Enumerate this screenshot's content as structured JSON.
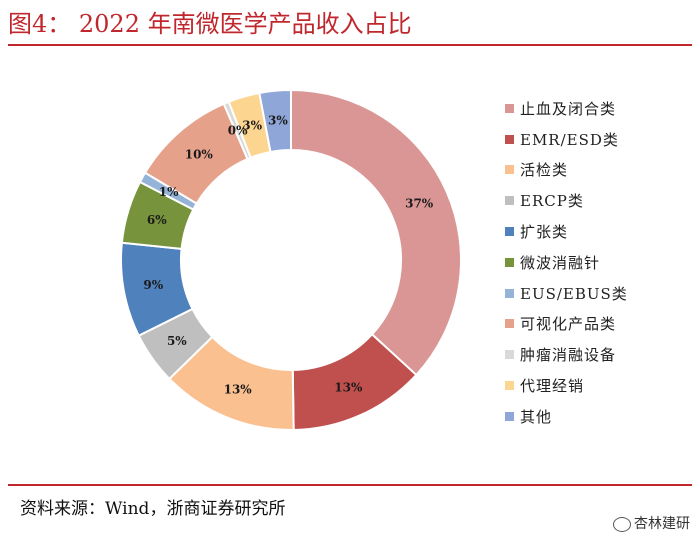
{
  "title": "图4： 2022 年南微医学产品收入占比",
  "source": "资料来源：Wind，浙商证券研究所",
  "watermark": "杏林建研",
  "chart_data": {
    "type": "pie",
    "donut": true,
    "legend_position": "right",
    "categories": [
      "止血及闭合类",
      "EMR/ESD类",
      "活检类",
      "ERCP类",
      "扩张类",
      "微波消融针",
      "EUS/EBUS类",
      "可视化产品类",
      "肿瘤消融设备",
      "代理经销",
      "其他"
    ],
    "values": [
      37,
      13,
      13,
      5,
      9,
      6,
      1,
      10,
      0.5,
      3,
      3
    ],
    "labels": [
      "37%",
      "13%",
      "13%",
      "5%",
      "9%",
      "6%",
      "1%",
      "10%",
      "0%",
      "3%",
      "3%"
    ],
    "colors": [
      "#d99694",
      "#c0504d",
      "#fac090",
      "#bfbfbf",
      "#4f81bd",
      "#77933c",
      "#95b3d7",
      "#e6a18a",
      "#d9d9d9",
      "#fcd590",
      "#8ea6d8"
    ]
  }
}
